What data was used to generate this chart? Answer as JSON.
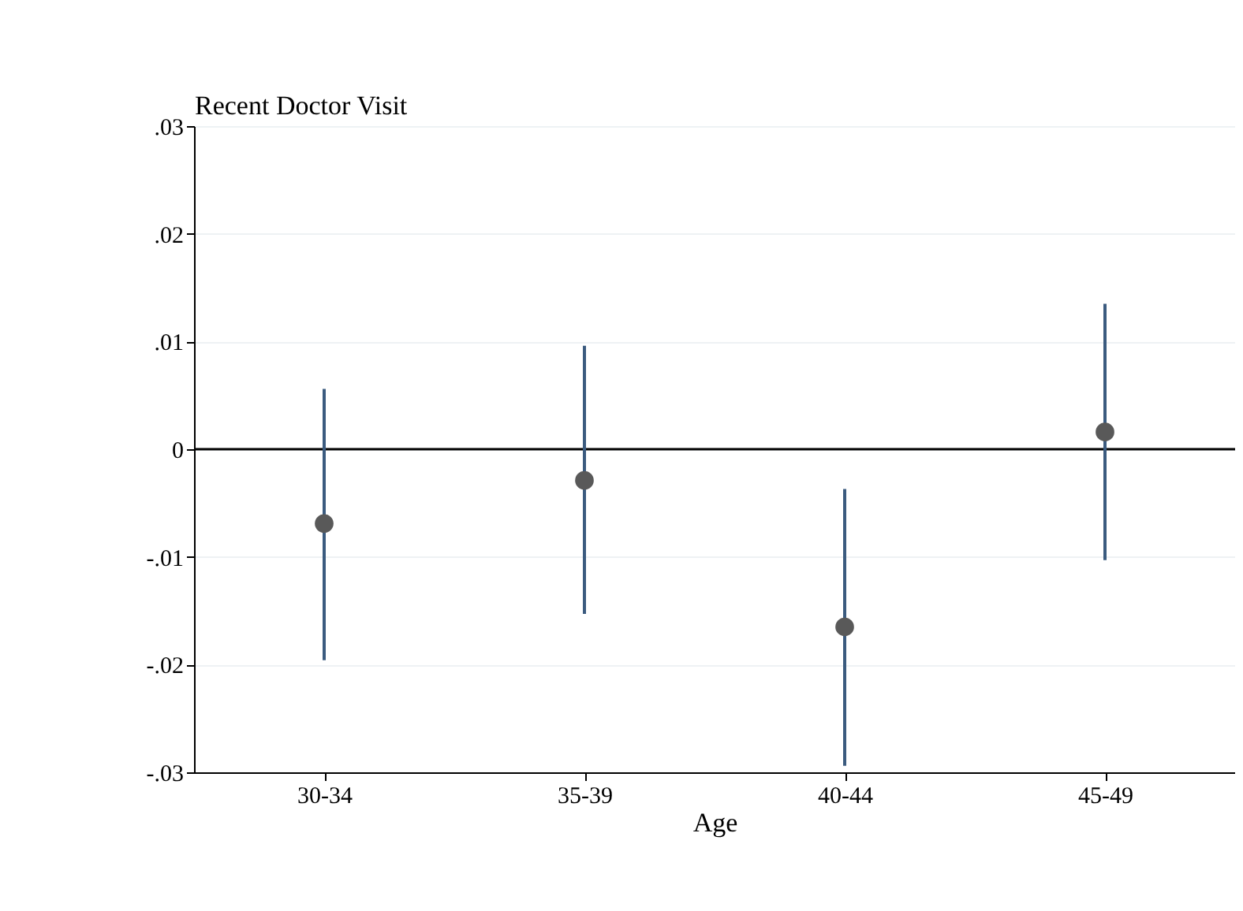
{
  "chart_data": {
    "type": "scatter",
    "xlabel": "Age",
    "ylabel": "Recent Doctor Visit",
    "categories": [
      "30-34",
      "35-39",
      "40-44",
      "45-49"
    ],
    "series": [
      {
        "color": "#595959",
        "values": [
          -0.0069,
          -0.0029,
          -0.0165,
          0.0016
        ],
        "errors": [
          [
            -0.0196,
            0.0056
          ],
          [
            -0.0153,
            0.0096
          ],
          [
            -0.0294,
            -0.0037
          ],
          [
            -0.0103,
            0.0135
          ]
        ]
      }
    ],
    "marker": "circle",
    "ylim": [
      -0.03,
      0.03
    ],
    "yticks": [
      {
        "value": -0.03,
        "label": "-.03"
      },
      {
        "value": -0.02,
        "label": "-.02"
      },
      {
        "value": -0.01,
        "label": "-.01"
      },
      0,
      {
        "value": 0.01,
        "label": ".01"
      },
      {
        "value": 0.02,
        "label": ".02"
      },
      {
        "value": 0.03,
        "label": ".03"
      }
    ],
    "grid": "y",
    "ref_lines": [
      {
        "axis": "y",
        "value": 0,
        "color": "#000000"
      }
    ]
  }
}
